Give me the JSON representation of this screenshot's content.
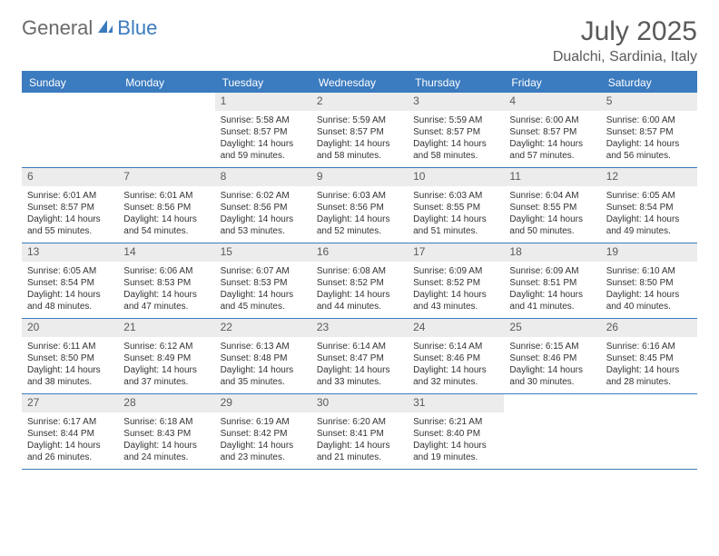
{
  "logo": {
    "part1": "General",
    "part2": "Blue"
  },
  "title": "July 2025",
  "location": "Dualchi, Sardinia, Italy",
  "colors": {
    "accent": "#3b7bbf",
    "header_text": "#ffffff",
    "daynum_bg": "#ececec",
    "body_text": "#333333",
    "muted_text": "#5a5a5a",
    "logo_gray": "#6a6a6a",
    "background": "#ffffff"
  },
  "day_headers": [
    "Sunday",
    "Monday",
    "Tuesday",
    "Wednesday",
    "Thursday",
    "Friday",
    "Saturday"
  ],
  "weeks": [
    [
      null,
      null,
      {
        "n": "1",
        "sunrise": "5:58 AM",
        "sunset": "8:57 PM",
        "daylight": "14 hours and 59 minutes."
      },
      {
        "n": "2",
        "sunrise": "5:59 AM",
        "sunset": "8:57 PM",
        "daylight": "14 hours and 58 minutes."
      },
      {
        "n": "3",
        "sunrise": "5:59 AM",
        "sunset": "8:57 PM",
        "daylight": "14 hours and 58 minutes."
      },
      {
        "n": "4",
        "sunrise": "6:00 AM",
        "sunset": "8:57 PM",
        "daylight": "14 hours and 57 minutes."
      },
      {
        "n": "5",
        "sunrise": "6:00 AM",
        "sunset": "8:57 PM",
        "daylight": "14 hours and 56 minutes."
      }
    ],
    [
      {
        "n": "6",
        "sunrise": "6:01 AM",
        "sunset": "8:57 PM",
        "daylight": "14 hours and 55 minutes."
      },
      {
        "n": "7",
        "sunrise": "6:01 AM",
        "sunset": "8:56 PM",
        "daylight": "14 hours and 54 minutes."
      },
      {
        "n": "8",
        "sunrise": "6:02 AM",
        "sunset": "8:56 PM",
        "daylight": "14 hours and 53 minutes."
      },
      {
        "n": "9",
        "sunrise": "6:03 AM",
        "sunset": "8:56 PM",
        "daylight": "14 hours and 52 minutes."
      },
      {
        "n": "10",
        "sunrise": "6:03 AM",
        "sunset": "8:55 PM",
        "daylight": "14 hours and 51 minutes."
      },
      {
        "n": "11",
        "sunrise": "6:04 AM",
        "sunset": "8:55 PM",
        "daylight": "14 hours and 50 minutes."
      },
      {
        "n": "12",
        "sunrise": "6:05 AM",
        "sunset": "8:54 PM",
        "daylight": "14 hours and 49 minutes."
      }
    ],
    [
      {
        "n": "13",
        "sunrise": "6:05 AM",
        "sunset": "8:54 PM",
        "daylight": "14 hours and 48 minutes."
      },
      {
        "n": "14",
        "sunrise": "6:06 AM",
        "sunset": "8:53 PM",
        "daylight": "14 hours and 47 minutes."
      },
      {
        "n": "15",
        "sunrise": "6:07 AM",
        "sunset": "8:53 PM",
        "daylight": "14 hours and 45 minutes."
      },
      {
        "n": "16",
        "sunrise": "6:08 AM",
        "sunset": "8:52 PM",
        "daylight": "14 hours and 44 minutes."
      },
      {
        "n": "17",
        "sunrise": "6:09 AM",
        "sunset": "8:52 PM",
        "daylight": "14 hours and 43 minutes."
      },
      {
        "n": "18",
        "sunrise": "6:09 AM",
        "sunset": "8:51 PM",
        "daylight": "14 hours and 41 minutes."
      },
      {
        "n": "19",
        "sunrise": "6:10 AM",
        "sunset": "8:50 PM",
        "daylight": "14 hours and 40 minutes."
      }
    ],
    [
      {
        "n": "20",
        "sunrise": "6:11 AM",
        "sunset": "8:50 PM",
        "daylight": "14 hours and 38 minutes."
      },
      {
        "n": "21",
        "sunrise": "6:12 AM",
        "sunset": "8:49 PM",
        "daylight": "14 hours and 37 minutes."
      },
      {
        "n": "22",
        "sunrise": "6:13 AM",
        "sunset": "8:48 PM",
        "daylight": "14 hours and 35 minutes."
      },
      {
        "n": "23",
        "sunrise": "6:14 AM",
        "sunset": "8:47 PM",
        "daylight": "14 hours and 33 minutes."
      },
      {
        "n": "24",
        "sunrise": "6:14 AM",
        "sunset": "8:46 PM",
        "daylight": "14 hours and 32 minutes."
      },
      {
        "n": "25",
        "sunrise": "6:15 AM",
        "sunset": "8:46 PM",
        "daylight": "14 hours and 30 minutes."
      },
      {
        "n": "26",
        "sunrise": "6:16 AM",
        "sunset": "8:45 PM",
        "daylight": "14 hours and 28 minutes."
      }
    ],
    [
      {
        "n": "27",
        "sunrise": "6:17 AM",
        "sunset": "8:44 PM",
        "daylight": "14 hours and 26 minutes."
      },
      {
        "n": "28",
        "sunrise": "6:18 AM",
        "sunset": "8:43 PM",
        "daylight": "14 hours and 24 minutes."
      },
      {
        "n": "29",
        "sunrise": "6:19 AM",
        "sunset": "8:42 PM",
        "daylight": "14 hours and 23 minutes."
      },
      {
        "n": "30",
        "sunrise": "6:20 AM",
        "sunset": "8:41 PM",
        "daylight": "14 hours and 21 minutes."
      },
      {
        "n": "31",
        "sunrise": "6:21 AM",
        "sunset": "8:40 PM",
        "daylight": "14 hours and 19 minutes."
      },
      null,
      null
    ]
  ],
  "labels": {
    "sunrise": "Sunrise:",
    "sunset": "Sunset:",
    "daylight": "Daylight:"
  }
}
